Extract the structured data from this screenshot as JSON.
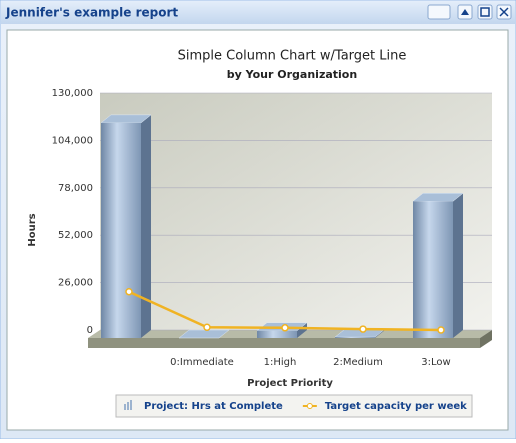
{
  "window": {
    "title": "Jennifer's example report"
  },
  "chart_data": {
    "type": "bar",
    "title": "Simple Column Chart w/Target Line",
    "subtitle": "by Your Organization",
    "x_label": "Project Priority",
    "y_label": "Hours",
    "categories": [
      null,
      "0:Immediate",
      "1:High",
      "2:Medium",
      "3:Low"
    ],
    "series": [
      {
        "name": "Project: Hrs at Complete",
        "type": "bar",
        "color": "#a9bfd8",
        "values": [
          118000,
          0,
          4000,
          500,
          75000
        ]
      },
      {
        "name": "Target capacity per week",
        "type": "line",
        "color": "#f0b323",
        "values": [
          21000,
          1500,
          1200,
          500,
          0
        ]
      }
    ],
    "ylim": [
      0,
      130000
    ],
    "yticks": [
      0,
      {
        "value": 26000,
        "label": "26,000"
      },
      {
        "value": 52000,
        "label": "52,000"
      },
      {
        "value": 78000,
        "label": "78,000"
      },
      {
        "value": 104000,
        "label": "104,000"
      },
      {
        "value": 130000,
        "label": "130,000"
      }
    ],
    "grid": true,
    "legend": "bottom"
  }
}
